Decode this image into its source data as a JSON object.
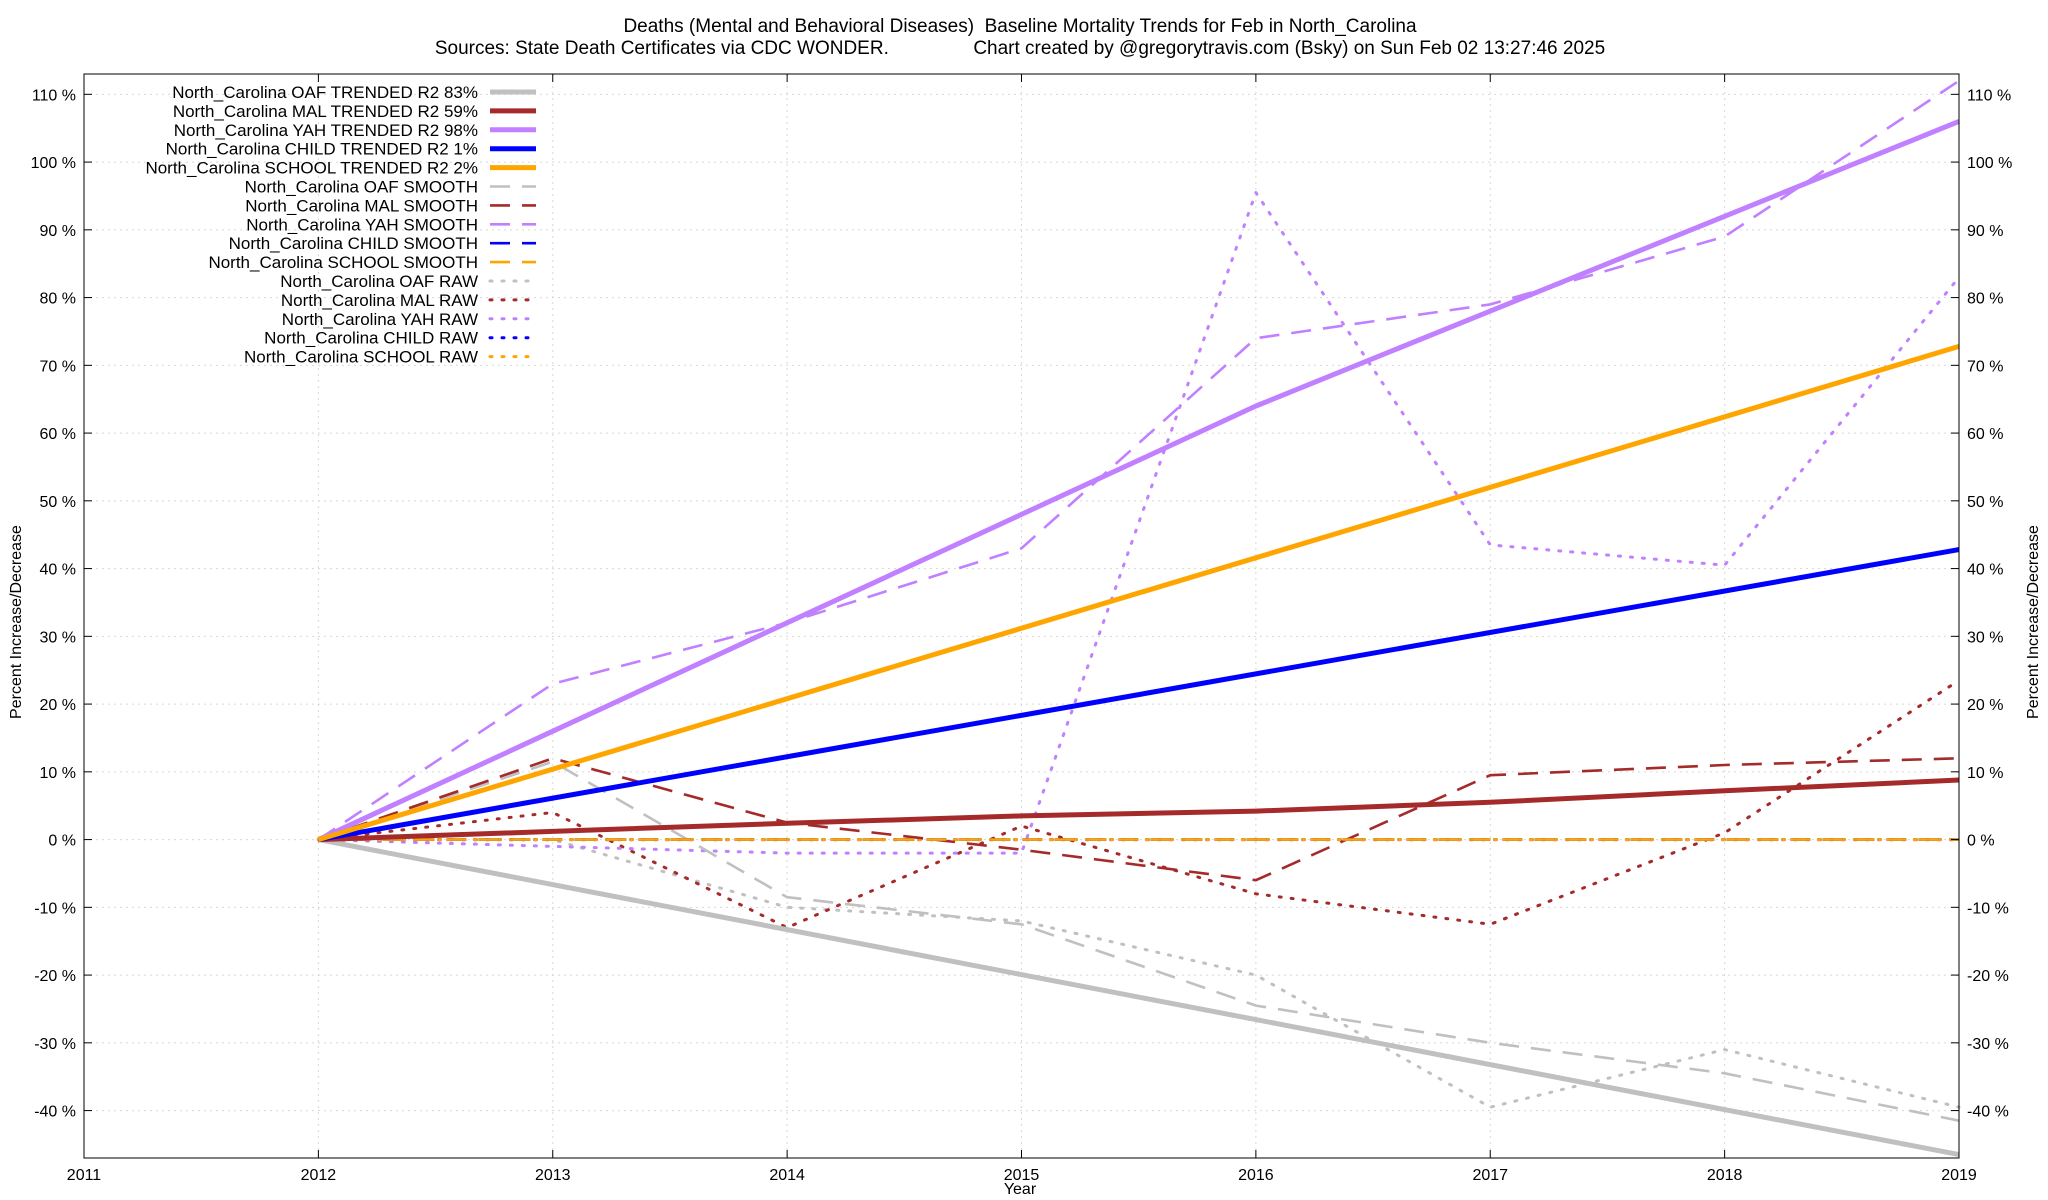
{
  "chart_data": {
    "type": "line",
    "title": "Deaths (Mental and Behavioral Diseases)  Baseline Mortality Trends for Feb in North_Carolina",
    "subtitle": "Sources: State Death Certificates via CDC WONDER.                Chart created by @gregorytravis.com (Bsky) on Sun Feb 02 13:27:46 2025",
    "xlabel": "Year",
    "ylabel": "Percent Increase/Decrease",
    "y2label": "Percent Increase/Decrease",
    "xlim": [
      2011,
      2019
    ],
    "ylim": [
      -47,
      113
    ],
    "x_ticks": [
      2011,
      2012,
      2013,
      2014,
      2015,
      2016,
      2017,
      2018,
      2019
    ],
    "y_ticks": [
      -40,
      -30,
      -20,
      -10,
      0,
      10,
      20,
      30,
      40,
      50,
      60,
      70,
      80,
      90,
      100,
      110
    ],
    "y_tick_suffix": " %",
    "grid": true,
    "legend_position": "top-left",
    "colors": {
      "OAF": "#c0c0c0",
      "MAL": "#a52a2a",
      "YAH": "#c080ff",
      "CHILD": "#0000ff",
      "SCHOOL": "#ffa500",
      "grid": "#d8d8d8"
    },
    "series": [
      {
        "name": "North_Carolina OAF TRENDED R2  83%",
        "group": "OAF",
        "style": "trend",
        "x": [
          2012,
          2019
        ],
        "y": [
          0,
          -46.5
        ]
      },
      {
        "name": "North_Carolina MAL TRENDED R2  59%",
        "group": "MAL",
        "style": "trend",
        "x": [
          2012,
          2013,
          2014,
          2015,
          2016,
          2017,
          2018,
          2019
        ],
        "y": [
          0,
          1.2,
          2.4,
          3.5,
          4.2,
          5.5,
          7.2,
          8.8
        ]
      },
      {
        "name": "North_Carolina YAH TRENDED R2  98%",
        "group": "YAH",
        "style": "trend",
        "x": [
          2012,
          2013,
          2014,
          2015,
          2016,
          2017,
          2018,
          2019
        ],
        "y": [
          0,
          16,
          32,
          48,
          64,
          78,
          92,
          106
        ]
      },
      {
        "name": "North_Carolina CHILD TRENDED R2   1%",
        "group": "CHILD",
        "style": "trend",
        "x": [
          2012,
          2019
        ],
        "y": [
          0,
          42.8
        ]
      },
      {
        "name": "North_Carolina SCHOOL TRENDED R2   2%",
        "group": "SCHOOL",
        "style": "trend",
        "x": [
          2012,
          2019
        ],
        "y": [
          0,
          72.8
        ]
      },
      {
        "name": "North_Carolina OAF SMOOTH",
        "group": "OAF",
        "style": "smooth",
        "x": [
          2012,
          2013,
          2014,
          2015,
          2016,
          2017,
          2018,
          2019
        ],
        "y": [
          0,
          11.5,
          -8.5,
          -12.5,
          -24.5,
          -30,
          -34.5,
          -41.5
        ]
      },
      {
        "name": "North_Carolina MAL SMOOTH",
        "group": "MAL",
        "style": "smooth",
        "x": [
          2012,
          2013,
          2014,
          2015,
          2016,
          2017,
          2018,
          2019
        ],
        "y": [
          0,
          12,
          2.5,
          -1.5,
          -6,
          9.5,
          11,
          12
        ]
      },
      {
        "name": "North_Carolina YAH SMOOTH",
        "group": "YAH",
        "style": "smooth",
        "x": [
          2012,
          2013,
          2014,
          2015,
          2016,
          2017,
          2018,
          2019
        ],
        "y": [
          0,
          23,
          32,
          43,
          74,
          79,
          89,
          112
        ]
      },
      {
        "name": "North_Carolina CHILD SMOOTH",
        "group": "CHILD",
        "style": "smooth",
        "x": [
          2012,
          2013,
          2014,
          2015,
          2016,
          2017,
          2018,
          2019
        ],
        "y": [
          0,
          0,
          0,
          0,
          0,
          0,
          0,
          0
        ]
      },
      {
        "name": "North_Carolina SCHOOL SMOOTH",
        "group": "SCHOOL",
        "style": "smooth",
        "x": [
          2012,
          2013,
          2014,
          2015,
          2016,
          2017,
          2018,
          2019
        ],
        "y": [
          0,
          0,
          0,
          0,
          0,
          0,
          0,
          0
        ]
      },
      {
        "name": "North_Carolina OAF RAW",
        "group": "OAF",
        "style": "raw",
        "x": [
          2012,
          2013,
          2014,
          2015,
          2016,
          2017,
          2018,
          2019
        ],
        "y": [
          0,
          0,
          -10,
          -12,
          -20,
          -39.5,
          -31,
          -39.5
        ]
      },
      {
        "name": "North_Carolina MAL RAW",
        "group": "MAL",
        "style": "raw",
        "x": [
          2012,
          2013,
          2014,
          2015,
          2016,
          2017,
          2018,
          2019
        ],
        "y": [
          0,
          4,
          -13,
          2,
          -8,
          -12.5,
          1,
          23.5
        ]
      },
      {
        "name": "North_Carolina YAH RAW",
        "group": "YAH",
        "style": "raw",
        "x": [
          2012,
          2013,
          2014,
          2015,
          2016,
          2017,
          2018,
          2019
        ],
        "y": [
          0,
          -1,
          -2,
          -2,
          95.5,
          43.5,
          40.5,
          83
        ]
      },
      {
        "name": "North_Carolina CHILD RAW",
        "group": "CHILD",
        "style": "raw",
        "x": [
          2012,
          2013,
          2014,
          2015,
          2016,
          2017,
          2018,
          2019
        ],
        "y": [
          0,
          0,
          0,
          0,
          0,
          0,
          0,
          0
        ]
      },
      {
        "name": "North_Carolina SCHOOL RAW",
        "group": "SCHOOL",
        "style": "raw",
        "x": [
          2012,
          2013,
          2014,
          2015,
          2016,
          2017,
          2018,
          2019
        ],
        "y": [
          0,
          0,
          0,
          0,
          0,
          0,
          0,
          0
        ]
      }
    ]
  }
}
